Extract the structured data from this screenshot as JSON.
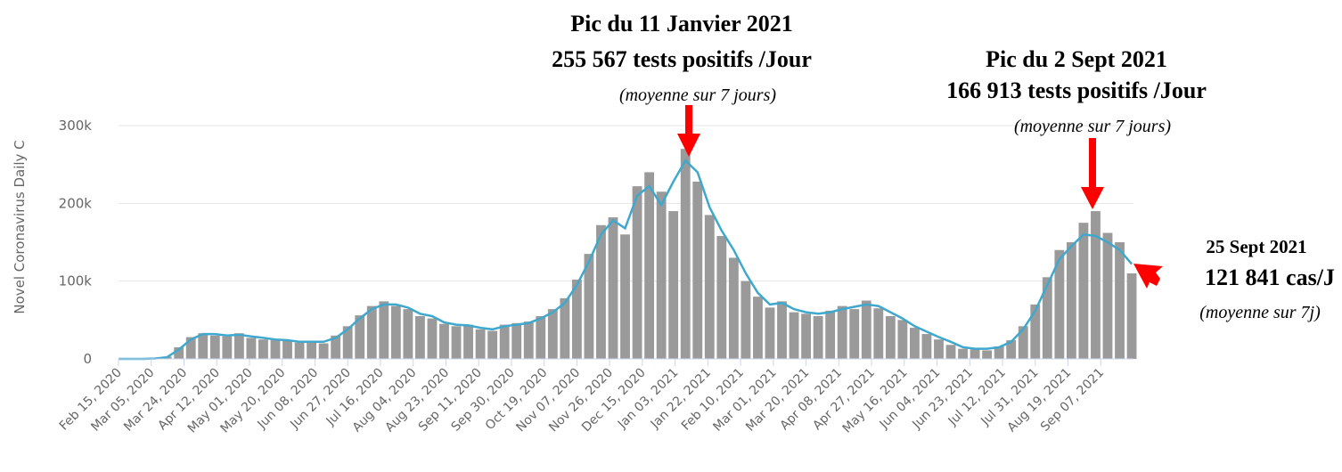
{
  "chart_data": {
    "type": "bar",
    "y_label": "Novel Coronavirus Daily C",
    "x": [
      "2020-02-15",
      "2020-02-22",
      "2020-02-29",
      "2020-03-07",
      "2020-03-14",
      "2020-03-21",
      "2020-03-28",
      "2020-04-04",
      "2020-04-11",
      "2020-04-18",
      "2020-04-25",
      "2020-05-02",
      "2020-05-09",
      "2020-05-16",
      "2020-05-23",
      "2020-05-30",
      "2020-06-06",
      "2020-06-13",
      "2020-06-20",
      "2020-06-27",
      "2020-07-04",
      "2020-07-11",
      "2020-07-18",
      "2020-07-25",
      "2020-08-01",
      "2020-08-08",
      "2020-08-15",
      "2020-08-22",
      "2020-08-29",
      "2020-09-05",
      "2020-09-12",
      "2020-09-19",
      "2020-09-26",
      "2020-10-03",
      "2020-10-10",
      "2020-10-17",
      "2020-10-24",
      "2020-10-31",
      "2020-11-07",
      "2020-11-14",
      "2020-11-21",
      "2020-11-28",
      "2020-12-05",
      "2020-12-12",
      "2020-12-19",
      "2020-12-26",
      "2021-01-02",
      "2021-01-09",
      "2021-01-16",
      "2021-01-23",
      "2021-01-30",
      "2021-02-06",
      "2021-02-13",
      "2021-02-20",
      "2021-02-27",
      "2021-03-06",
      "2021-03-13",
      "2021-03-20",
      "2021-03-27",
      "2021-04-03",
      "2021-04-10",
      "2021-04-17",
      "2021-04-24",
      "2021-05-01",
      "2021-05-08",
      "2021-05-15",
      "2021-05-22",
      "2021-05-29",
      "2021-06-05",
      "2021-06-12",
      "2021-06-19",
      "2021-06-26",
      "2021-07-03",
      "2021-07-10",
      "2021-07-17",
      "2021-07-24",
      "2021-07-31",
      "2021-08-07",
      "2021-08-14",
      "2021-08-21",
      "2021-08-28",
      "2021-09-04",
      "2021-09-11",
      "2021-09-18",
      "2021-09-25"
    ],
    "series": [
      {
        "type": "bar",
        "color": "#9a9a9a",
        "values": [
          0,
          0,
          0,
          800,
          3000,
          15000,
          28000,
          33000,
          30000,
          29000,
          33000,
          27000,
          25000,
          24000,
          23000,
          21000,
          23000,
          20000,
          30000,
          42000,
          56000,
          68000,
          74000,
          68000,
          64000,
          55000,
          52000,
          45000,
          42000,
          44000,
          38000,
          36000,
          44000,
          46000,
          48000,
          55000,
          64000,
          78000,
          102000,
          135000,
          172000,
          182000,
          160000,
          222000,
          240000,
          215000,
          190000,
          270000,
          228000,
          185000,
          158000,
          130000,
          100000,
          80000,
          66000,
          74000,
          60000,
          58000,
          55000,
          62000,
          68000,
          64000,
          75000,
          65000,
          55000,
          50000,
          40000,
          32000,
          25000,
          18000,
          13000,
          12000,
          11000,
          16000,
          24000,
          42000,
          70000,
          105000,
          140000,
          150000,
          175000,
          190000,
          162000,
          150000,
          110000
        ]
      },
      {
        "type": "line",
        "color": "#3fa8cc",
        "values": [
          0,
          0,
          0,
          500,
          2000,
          12000,
          25000,
          32000,
          32000,
          30000,
          31000,
          29000,
          27000,
          25000,
          24000,
          22000,
          22000,
          22000,
          27000,
          38000,
          52000,
          64000,
          70000,
          70000,
          66000,
          58000,
          55000,
          47000,
          44000,
          43000,
          40000,
          38000,
          42000,
          44000,
          46000,
          52000,
          60000,
          72000,
          95000,
          125000,
          160000,
          178000,
          168000,
          210000,
          222000,
          198000,
          228000,
          255000,
          240000,
          195000,
          165000,
          140000,
          110000,
          85000,
          70000,
          72000,
          64000,
          60000,
          58000,
          60000,
          64000,
          67000,
          70000,
          68000,
          60000,
          52000,
          42000,
          35000,
          28000,
          22000,
          15000,
          13000,
          13000,
          15000,
          22000,
          38000,
          62000,
          95000,
          128000,
          145000,
          160000,
          158000,
          150000,
          140000,
          122000
        ]
      }
    ],
    "xlim": [
      "2020-02-15",
      "2021-09-26"
    ],
    "xticks": [
      {
        "value": "2020-02-15",
        "label": "Feb 15, 2020"
      },
      {
        "value": "2020-03-05",
        "label": "Mar 05, 2020"
      },
      {
        "value": "2020-03-24",
        "label": "Mar 24, 2020"
      },
      {
        "value": "2020-04-12",
        "label": "Apr 12, 2020"
      },
      {
        "value": "2020-05-01",
        "label": "May 01, 2020"
      },
      {
        "value": "2020-05-20",
        "label": "May 20, 2020"
      },
      {
        "value": "2020-06-08",
        "label": "Jun 08, 2020"
      },
      {
        "value": "2020-06-27",
        "label": "Jun 27, 2020"
      },
      {
        "value": "2020-07-16",
        "label": "Jul 16, 2020"
      },
      {
        "value": "2020-08-04",
        "label": "Aug 04, 2020"
      },
      {
        "value": "2020-08-23",
        "label": "Aug 23, 2020"
      },
      {
        "value": "2020-09-11",
        "label": "Sep 11, 2020"
      },
      {
        "value": "2020-09-30",
        "label": "Sep 30, 2020"
      },
      {
        "value": "2020-10-19",
        "label": "Oct 19, 2020"
      },
      {
        "value": "2020-11-07",
        "label": "Nov 07, 2020"
      },
      {
        "value": "2020-11-26",
        "label": "Nov 26, 2020"
      },
      {
        "value": "2020-12-15",
        "label": "Dec 15, 2020"
      },
      {
        "value": "2021-01-03",
        "label": "Jan 03, 2021"
      },
      {
        "value": "2021-01-22",
        "label": "Jan 22, 2021"
      },
      {
        "value": "2021-02-10",
        "label": "Feb 10, 2021"
      },
      {
        "value": "2021-03-01",
        "label": "Mar 01, 2021"
      },
      {
        "value": "2021-03-20",
        "label": "Mar 20, 2021"
      },
      {
        "value": "2021-04-08",
        "label": "Apr 08, 2021"
      },
      {
        "value": "2021-04-27",
        "label": "Apr 27, 2021"
      },
      {
        "value": "2021-05-16",
        "label": "May 16, 2021"
      },
      {
        "value": "2021-06-04",
        "label": "Jun 04, 2021"
      },
      {
        "value": "2021-06-23",
        "label": "Jun 23, 2021"
      },
      {
        "value": "2021-07-12",
        "label": "Jul 12, 2021"
      },
      {
        "value": "2021-07-31",
        "label": "Jul 31, 2021"
      },
      {
        "value": "2021-08-19",
        "label": "Aug 19, 2021"
      },
      {
        "value": "2021-09-07",
        "label": "Sep 07, 2021"
      }
    ],
    "ylim": [
      0,
      300000
    ],
    "yticks": [
      0,
      {
        "value": 100000,
        "label": "100k"
      },
      {
        "value": 200000,
        "label": "200k"
      },
      {
        "value": 300000,
        "label": "300k"
      }
    ],
    "grid": true,
    "annotations": [
      {
        "lines": [
          "Pic du 11 Janvier 2021",
          "255 567 tests positifs /Jour",
          "(moyenne sur 7 jours)"
        ]
      },
      {
        "lines": [
          "Pic du 2 Sept 2021",
          "166 913 tests positifs /Jour",
          "(moyenne sur 7 jours)"
        ]
      },
      {
        "lines": [
          "25 Sept 2021",
          "121 841 cas/J",
          "(moyenne sur 7j)"
        ]
      }
    ]
  }
}
